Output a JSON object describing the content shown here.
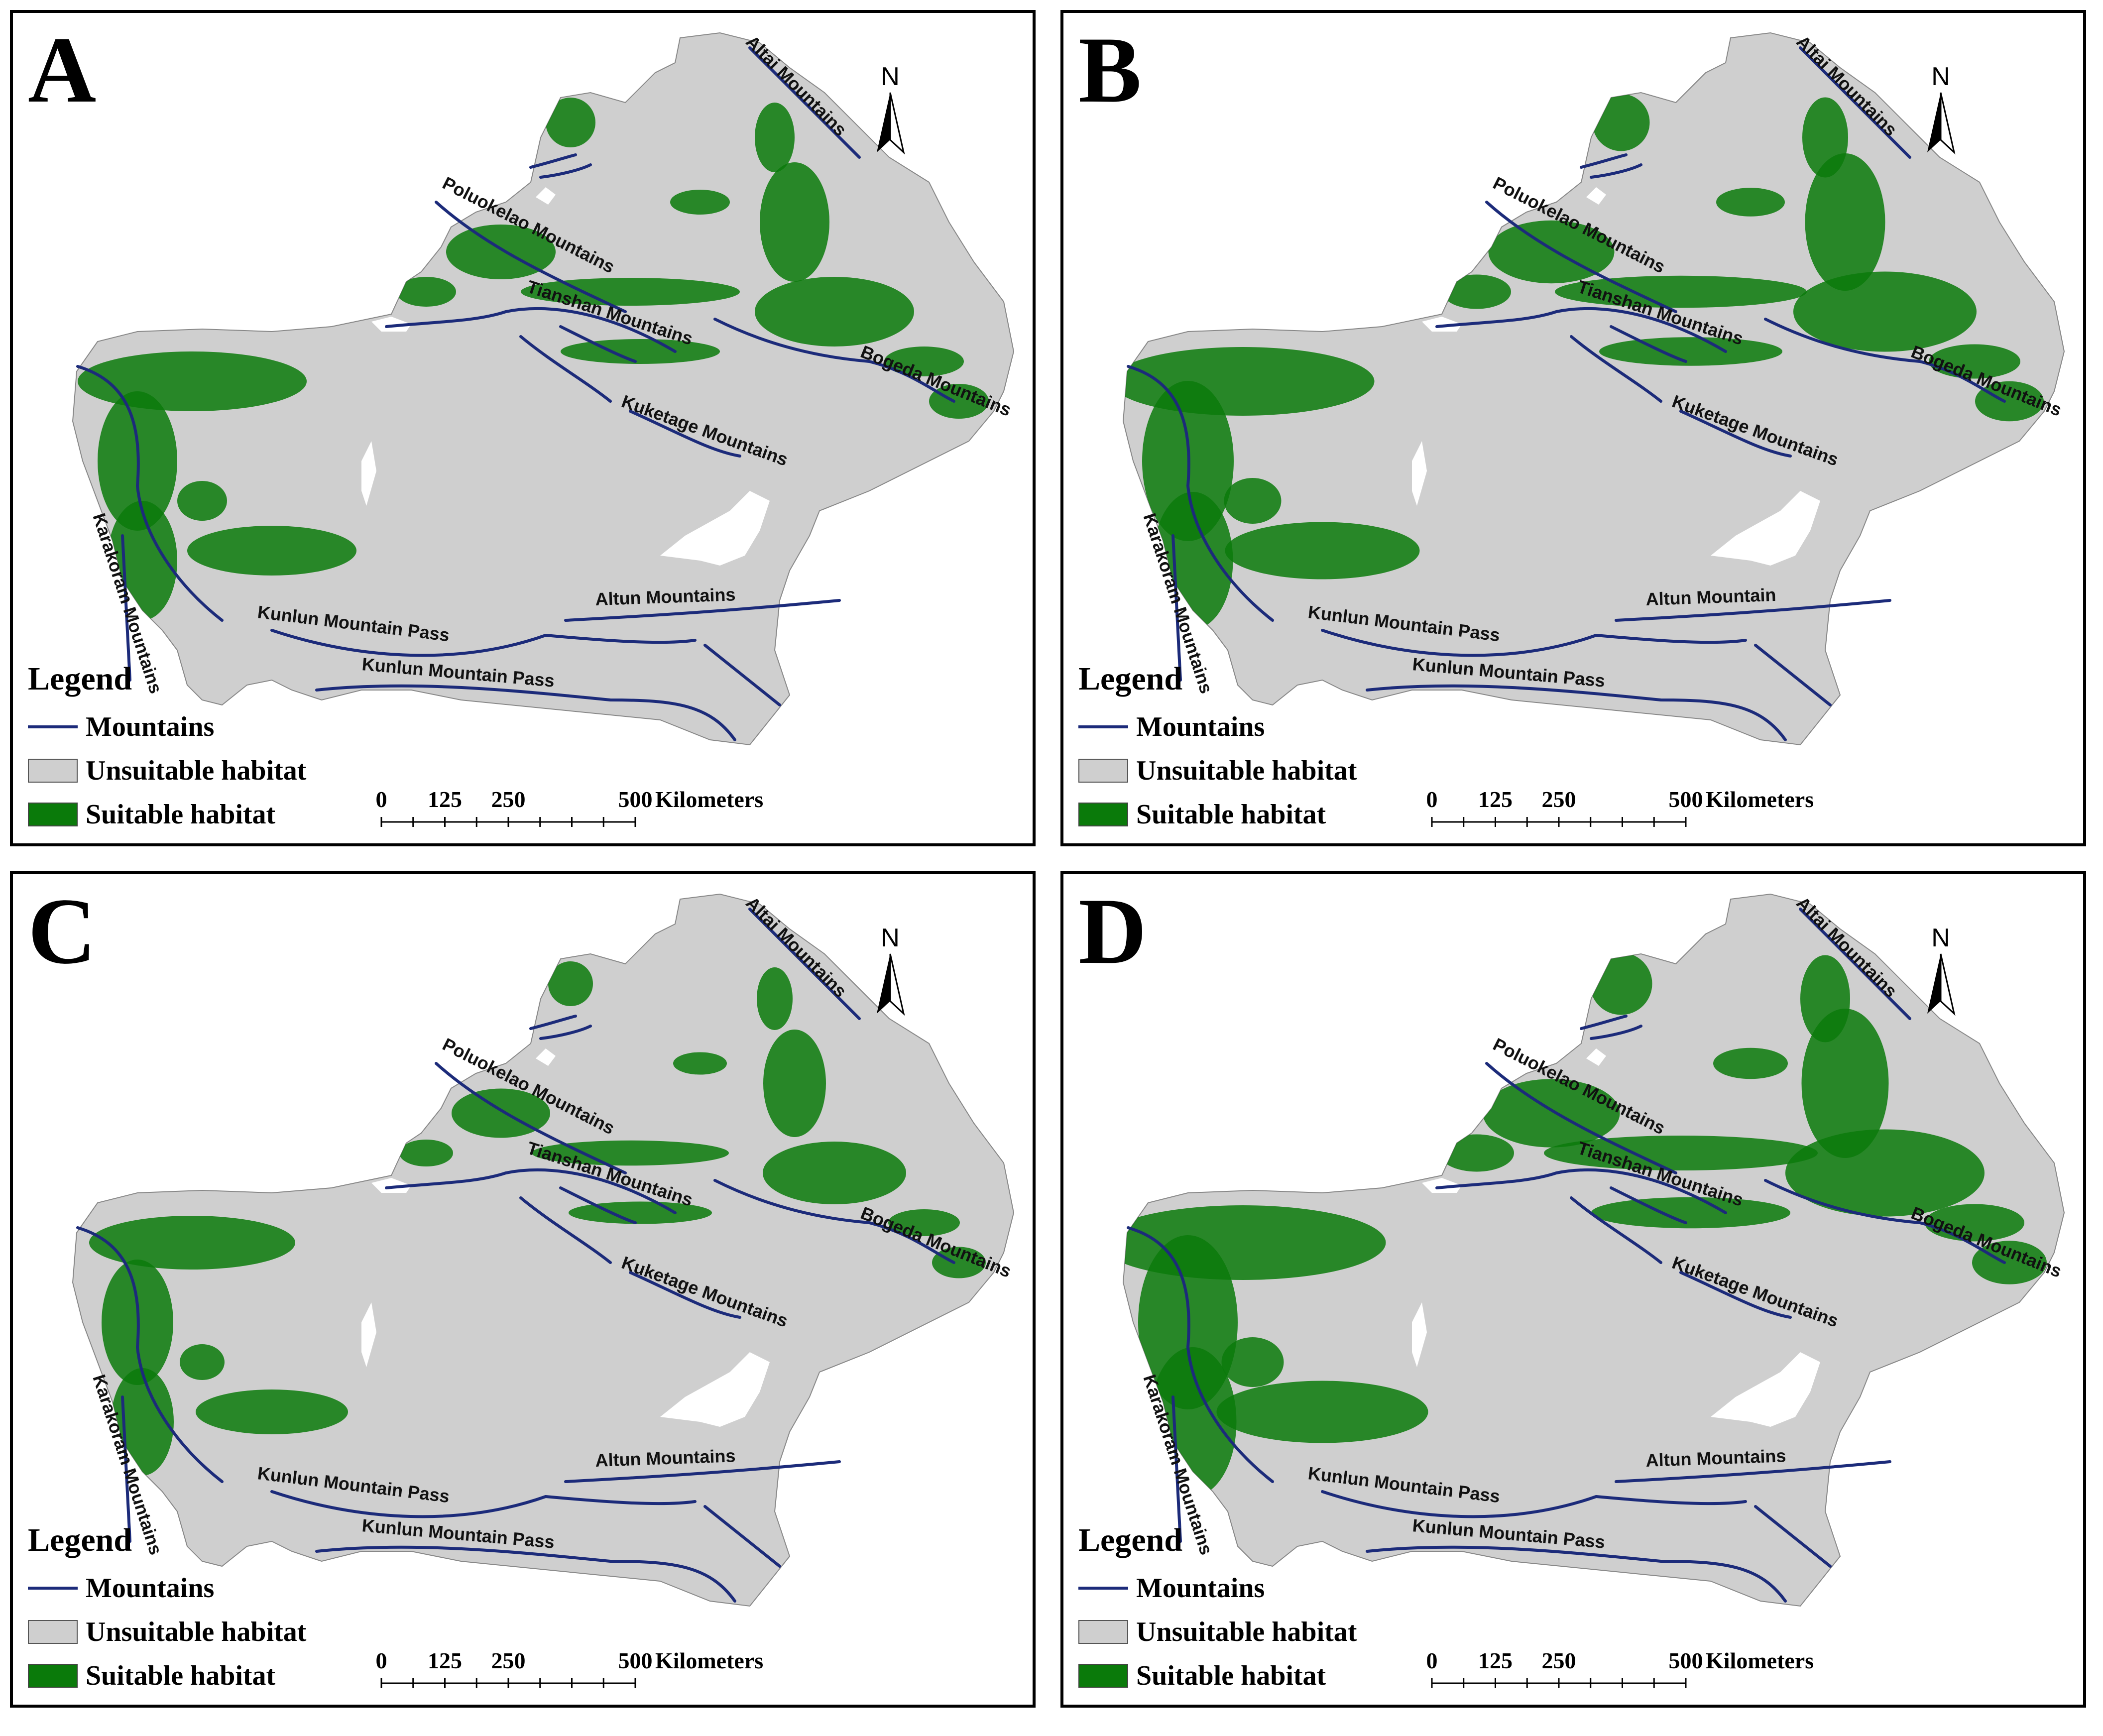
{
  "figure": {
    "panels": [
      {
        "letter": "A",
        "labels": {
          "altai": "Altai Mountains",
          "poluo": "Poluokelao Mountains",
          "tianshan": "Tianshan Mountains",
          "bogeda": "Bogeda Mountains",
          "kuketage": "Kuketage Mountains",
          "karakoram": "Karakoram Mountains",
          "kunlun1": "Kunlun Mountain Pass",
          "kunlun2": "Kunlun Mountain Pass",
          "altun": "Altun Mountains"
        }
      },
      {
        "letter": "B",
        "labels": {
          "altai": "Altai Mountains",
          "poluo": "Poluokelao Mountains",
          "tianshan": "Tianshan Mountains",
          "bogeda": "Bogeda Mountains",
          "kuketage": "Kuketage Mountains",
          "karakoram": "Karakoram Mountains",
          "kunlun1": "Kunlun Mountain Pass",
          "kunlun2": "Kunlun Mountain Pass",
          "altun": "Altun Mountain"
        }
      },
      {
        "letter": "C",
        "labels": {
          "altai": "Altai Mountains",
          "poluo": "Poluokelao Mountains",
          "tianshan": "Tianshan Mountains",
          "bogeda": "Bogeda Mountains",
          "kuketage": "Kuketage Mountains",
          "karakoram": "Karakoram Mountains",
          "kunlun1": "Kunlun Mountain Pass",
          "kunlun2": "Kunlun Mountain Pass",
          "altun": "Altun Mountains"
        }
      },
      {
        "letter": "D",
        "labels": {
          "altai": "Altai Mountains",
          "poluo": "Poluokelao Mountains",
          "tianshan": "Tianshan Mountains",
          "bogeda": "Bogeda Mountains",
          "kuketage": "Kuketage Mountains",
          "karakoram": "Karakoram Mountains",
          "kunlun1": "Kunlun Mountain Pass",
          "kunlun2": "Kunlun Mountain Pass",
          "altun": "Altun Mountains"
        }
      }
    ],
    "north_label": "N",
    "legend": {
      "title": "Legend",
      "mountains": "Mountains",
      "unsuitable": "Unsuitable habitat",
      "suitable": "Suitable habitat"
    },
    "scale": {
      "t0": "0",
      "t125": "125",
      "t250": "250",
      "t500": "500",
      "unit": "Kilometers"
    },
    "colors": {
      "unsuitable": "#cfcfcf",
      "suitable": "#0a7a0a",
      "mountain_line": "#1c2b7a"
    }
  }
}
